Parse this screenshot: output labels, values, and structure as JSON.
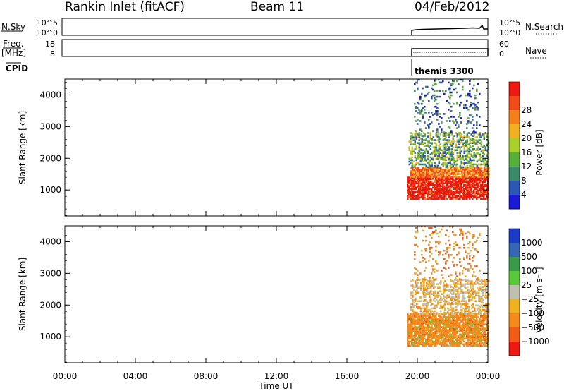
{
  "header": {
    "station": "Rankin Inlet (fitACF)",
    "beam": "Beam 11",
    "date": "04/Feb/2012"
  },
  "status": {
    "nsky_label": "N.Sky",
    "nsearch_label": "N.Search",
    "freq_label": "Freq.",
    "freq_unit": "[MHz]",
    "nave_label": "Nave",
    "cpid_label": "CPID",
    "cpid_value": "themis 3300",
    "nsky_ticks": [
      "10^5",
      "10^0"
    ],
    "nsearch_ticks": [
      "10^5",
      "10^0"
    ],
    "freq_ticks": [
      "18",
      "8"
    ],
    "nave_ticks": [
      "60",
      "0"
    ]
  },
  "chart_data": [
    {
      "type": "heatmap",
      "name": "power",
      "ylabel": "Slant Range [km]",
      "ylim": [
        180,
        4500
      ],
      "yticks": [
        1000,
        2000,
        3000,
        4000
      ],
      "xlim": [
        0,
        24
      ],
      "colorbar": {
        "label": "Power [dB]",
        "ticks": [
          "4",
          "8",
          "12",
          "16",
          "20",
          "24",
          "28"
        ],
        "colors": [
          "#1a1ad8",
          "#2a58b4",
          "#3a8a6a",
          "#55b03a",
          "#a8cf2a",
          "#f0b020",
          "#f47f1c",
          "#f24a18",
          "#ee1a10"
        ]
      },
      "blocks": [
        {
          "t0": 19.4,
          "t1": 24.0,
          "r0": 700,
          "r1": 1400,
          "dominant": "28+"
        },
        {
          "t0": 19.6,
          "t1": 24.0,
          "r0": 1400,
          "r1": 1700,
          "dominant": "20-24"
        },
        {
          "t0": 19.5,
          "t1": 24.0,
          "r0": 1700,
          "r1": 2800,
          "dominant": "8-16"
        },
        {
          "t0": 19.8,
          "t1": 23.5,
          "r0": 2800,
          "r1": 4500,
          "dominant": "4-12"
        }
      ]
    },
    {
      "type": "heatmap",
      "name": "velocity",
      "ylabel": "Slant Range [km]",
      "ylim": [
        180,
        4500
      ],
      "yticks": [
        1000,
        2000,
        3000,
        4000
      ],
      "xlabel": "Time UT",
      "xticks": [
        "00:00",
        "04:00",
        "08:00",
        "12:00",
        "16:00",
        "20:00",
        "00:00"
      ],
      "xlim": [
        0,
        24
      ],
      "colorbar": {
        "label": "Velocity [m s⁻¹]",
        "ticks": [
          "1000",
          "500",
          "100",
          "25",
          "−25",
          "−100",
          "−500",
          "−1000"
        ],
        "colors": [
          "#1a3cc8",
          "#3566b4",
          "#3a9a4a",
          "#5ac83a",
          "#c0c0b0",
          "#f0b020",
          "#f48a1c",
          "#f25a18",
          "#ee1a10"
        ]
      },
      "blocks": [
        {
          "t0": 19.4,
          "t1": 24.0,
          "r0": 700,
          "r1": 1700,
          "dominant": "-100 to -500"
        },
        {
          "t0": 19.6,
          "t1": 24.0,
          "r0": 1700,
          "r1": 2800,
          "dominant": "-25 to -100"
        },
        {
          "t0": 19.8,
          "t1": 23.5,
          "r0": 2800,
          "r1": 4500,
          "dominant": "-100 to -500"
        }
      ]
    }
  ],
  "colors": {
    "axis": "#000000",
    "background": "#ffffff"
  }
}
